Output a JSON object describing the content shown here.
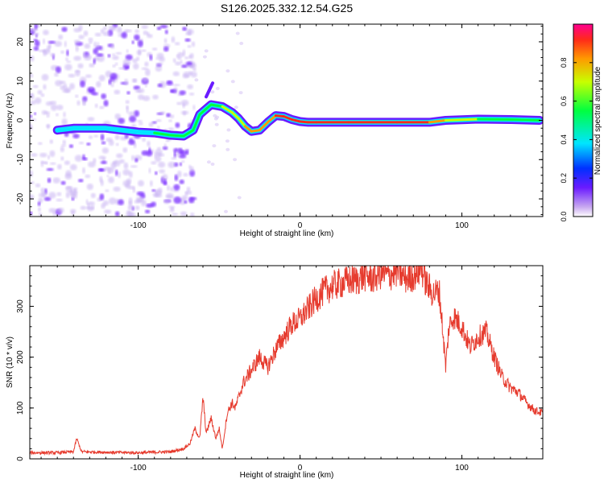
{
  "title": "S126.2025.332.12.54.G25",
  "colors": {
    "snr_line": "#e63b2e",
    "ridge_low": "#6a1bff",
    "ridge_mid": "#00e5ff",
    "ridge_high": "#ff2a1a",
    "noise": "#9b5cff"
  },
  "chart_data": [
    {
      "type": "heatmap",
      "name": "spectrogram",
      "xlabel": "Height of straight line (km)",
      "ylabel": "Frequency (Hz)",
      "xlim": [
        -167,
        150
      ],
      "ylim": [
        -24.5,
        24.5
      ],
      "xticks": [
        -100,
        0,
        100
      ],
      "yticks": [
        -20,
        -10,
        0,
        10,
        20
      ],
      "colorbar": {
        "label": "Normalized spectral amplitude",
        "ticks": [
          "0.0",
          "0.2",
          "0.4",
          "0.6",
          "0.8"
        ],
        "range": [
          0,
          1
        ]
      },
      "ridge": {
        "x": [
          -150,
          -140,
          -120,
          -110,
          -100,
          -90,
          -80,
          -72,
          -66,
          -62,
          -55,
          -48,
          -42,
          -38,
          -34,
          -30,
          -25,
          -20,
          -15,
          -10,
          -5,
          0,
          5,
          10,
          30,
          60,
          80,
          90,
          110,
          130,
          148
        ],
        "freq": [
          -2.5,
          -2.0,
          -2.0,
          -2.5,
          -3.0,
          -3.2,
          -3.8,
          -4.0,
          -2.5,
          1.5,
          4.0,
          3.5,
          2.0,
          0.5,
          -1.5,
          -2.8,
          -2.5,
          -0.5,
          1.2,
          1.0,
          0.2,
          -0.3,
          -0.5,
          -0.5,
          -0.5,
          -0.5,
          -0.5,
          0.0,
          0.3,
          0.2,
          0.0
        ],
        "amp": [
          0.3,
          0.35,
          0.25,
          0.35,
          0.45,
          0.45,
          0.5,
          0.5,
          0.55,
          0.6,
          0.6,
          0.6,
          0.65,
          0.7,
          0.75,
          0.8,
          0.8,
          0.85,
          0.9,
          0.92,
          0.95,
          0.97,
          1.0,
          1.0,
          1.0,
          1.0,
          0.95,
          0.7,
          0.55,
          0.5,
          0.45
        ]
      }
    },
    {
      "type": "line",
      "name": "snr",
      "xlabel": "Height of straight line (km)",
      "ylabel": "SNR (10 * v/v)",
      "xlim": [
        -167,
        150
      ],
      "ylim": [
        0,
        380
      ],
      "xticks": [
        -100,
        0,
        100
      ],
      "yticks": [
        0,
        100,
        200,
        300
      ],
      "series": [
        {
          "name": "SNR",
          "x": [
            -167,
            -150,
            -140,
            -138,
            -135,
            -120,
            -100,
            -80,
            -72,
            -68,
            -65,
            -62,
            -60,
            -58,
            -55,
            -52,
            -50,
            -48,
            -45,
            -42,
            -40,
            -35,
            -30,
            -25,
            -20,
            -15,
            -10,
            -5,
            0,
            5,
            10,
            15,
            20,
            25,
            30,
            35,
            40,
            45,
            50,
            55,
            60,
            65,
            70,
            75,
            78,
            82,
            86,
            88,
            90,
            92,
            95,
            100,
            105,
            110,
            115,
            120,
            125,
            130,
            135,
            140,
            145,
            150
          ],
          "y": [
            12,
            12,
            14,
            40,
            14,
            13,
            12,
            14,
            20,
            30,
            60,
            40,
            120,
            50,
            80,
            40,
            60,
            20,
            90,
            110,
            100,
            150,
            175,
            200,
            180,
            215,
            240,
            265,
            275,
            295,
            315,
            330,
            340,
            345,
            350,
            352,
            360,
            355,
            365,
            360,
            370,
            355,
            360,
            375,
            345,
            325,
            330,
            260,
            180,
            260,
            280,
            260,
            220,
            240,
            250,
            200,
            160,
            140,
            130,
            110,
            95,
            90
          ]
        }
      ]
    }
  ]
}
